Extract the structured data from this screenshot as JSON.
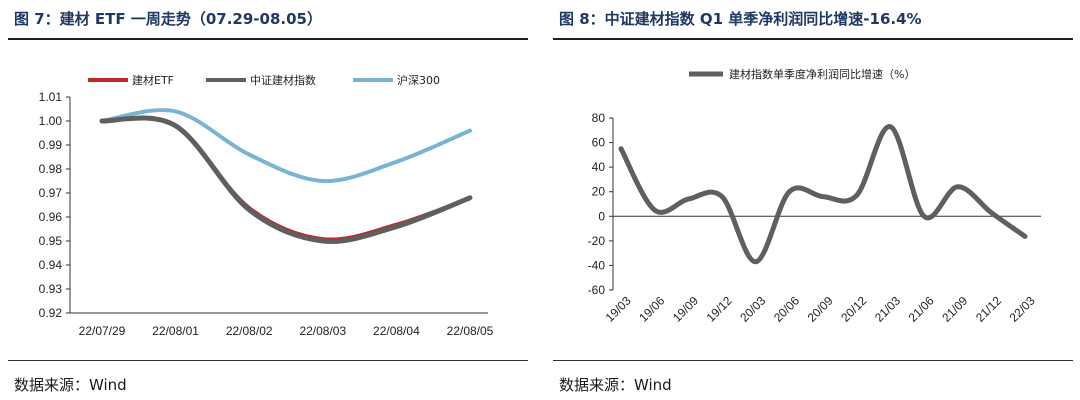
{
  "left": {
    "title": "图 7：建材 ETF 一周走势（07.29-08.05）",
    "source": "数据来源：Wind",
    "chart_data": {
      "type": "line",
      "title": "",
      "xlabel": "",
      "ylabel": "",
      "categories": [
        "22/07/29",
        "22/08/01",
        "22/08/02",
        "22/08/03",
        "22/08/04",
        "22/08/05"
      ],
      "ylim": [
        0.92,
        1.01
      ],
      "yticks": [
        "1.01",
        "1.00",
        "0.99",
        "0.98",
        "0.97",
        "0.96",
        "0.95",
        "0.94",
        "0.93",
        "0.92"
      ],
      "legend_position": "top",
      "grid": false,
      "series": [
        {
          "name": "建材ETF",
          "color": "#c0282d",
          "values": [
            1.0,
            0.998,
            0.964,
            0.951,
            0.957,
            0.968
          ]
        },
        {
          "name": "中证建材指数",
          "color": "#5f5f5f",
          "values": [
            1.0,
            0.998,
            0.963,
            0.95,
            0.956,
            0.968
          ]
        },
        {
          "name": "沪深300",
          "color": "#7ab4d4",
          "values": [
            1.0,
            1.004,
            0.986,
            0.975,
            0.983,
            0.996
          ]
        }
      ]
    }
  },
  "right": {
    "title": "图 8：中证建材指数 Q1 单季净利润同比增速-16.4%",
    "source": "数据来源：Wind",
    "chart_data": {
      "type": "line",
      "title": "",
      "xlabel": "",
      "ylabel": "",
      "categories": [
        "19/03",
        "19/06",
        "19/09",
        "19/12",
        "20/03",
        "20/06",
        "20/09",
        "20/12",
        "21/03",
        "21/06",
        "21/09",
        "21/12",
        "22/03"
      ],
      "ylim": [
        -60,
        80
      ],
      "yticks": [
        "80",
        "60",
        "40",
        "20",
        "0",
        "-20",
        "-40",
        "-60"
      ],
      "legend_position": "top",
      "grid": false,
      "series": [
        {
          "name": "建材指数单季度净利润同比增速（%）",
          "color": "#5f5f5f",
          "values": [
            55,
            5,
            14,
            16,
            -37,
            20,
            16,
            17,
            73,
            0,
            24,
            3,
            -16.4
          ]
        }
      ]
    }
  }
}
